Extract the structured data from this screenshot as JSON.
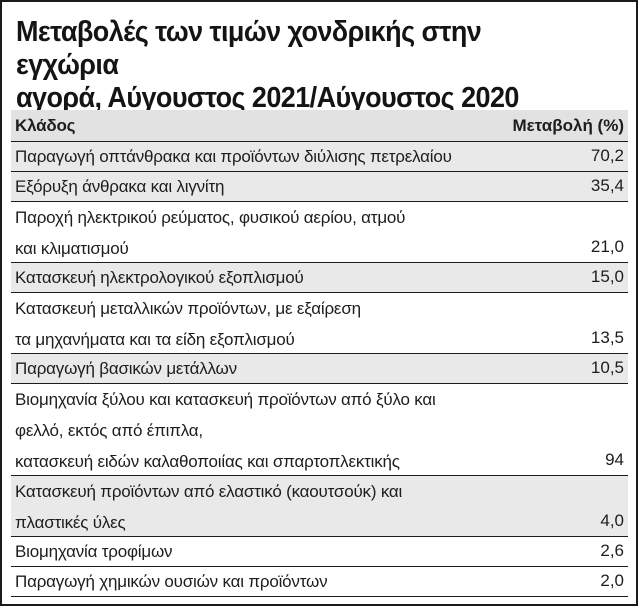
{
  "title": {
    "line1": "Μεταβολές των τιμών χονδρικής στην εγχώρια",
    "line2": "αγορά, Αύγουστος 2021/Αύγουστος 2020"
  },
  "table": {
    "header": {
      "sector": "Κλάδος",
      "change": "Μεταβολή (%)"
    },
    "rows": [
      {
        "lines": [
          "Παραγωγή οπτάνθρακα και προϊόντων διύλισης πετρελαίου"
        ],
        "value": "70,2",
        "shaded": true
      },
      {
        "lines": [
          "Εξόρυξη άνθρακα και λιγνίτη"
        ],
        "value": "35,4",
        "shaded": true
      },
      {
        "lines": [
          "Παροχή ηλεκτρικού ρεύματος, φυσικού αερίου, ατμού",
          "και κλιματισμού"
        ],
        "value": "21,0",
        "shaded": false
      },
      {
        "lines": [
          "Κατασκευή ηλεκτρολογικού εξοπλισμού"
        ],
        "value": "15,0",
        "shaded": true
      },
      {
        "lines": [
          "Κατασκευή μεταλλικών προϊόντων, με εξαίρεση",
          "τα μηχανήματα και τα είδη εξοπλισμού"
        ],
        "value": "13,5",
        "shaded": false
      },
      {
        "lines": [
          "Παραγωγή βασικών μετάλλων"
        ],
        "value": "10,5",
        "shaded": true
      },
      {
        "lines": [
          "Βιομηχανία ξύλου και κατασκευή προϊόντων από ξύλο και",
          "φελλό, εκτός από έπιπλα,",
          "κατασκευή ειδών καλαθοποιίας και σπαρτοπλεκτικής"
        ],
        "value": "94",
        "shaded": false
      },
      {
        "lines": [
          "Κατασκευή προϊόντων από ελαστικό (καουτσούκ) και",
          "πλαστικές ύλες"
        ],
        "value": "4,0",
        "shaded": true
      },
      {
        "lines": [
          "Βιομηχανία τροφίμων"
        ],
        "value": "2,6",
        "shaded": false
      },
      {
        "lines": [
          "Παραγωγή χημικών ουσιών και προϊόντων"
        ],
        "value": "2,0",
        "shaded": false
      }
    ]
  }
}
